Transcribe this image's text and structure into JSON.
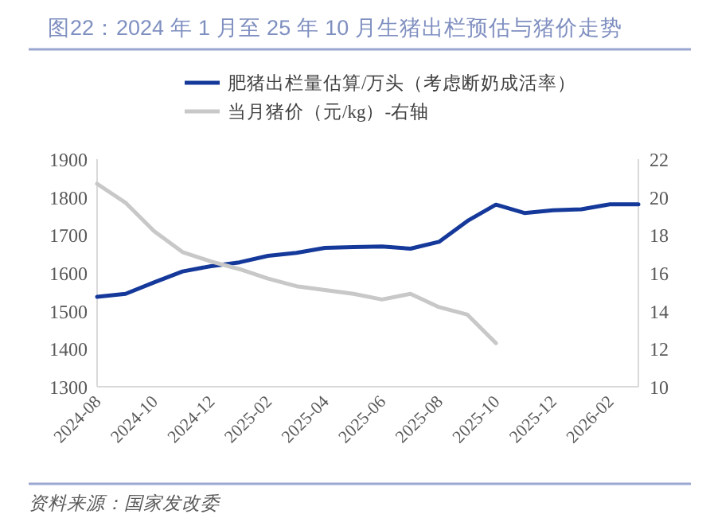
{
  "chart_data": {
    "type": "line",
    "title": "图22：2024 年 1 月至 25 年 10 月生猪出栏预估与猪价走势",
    "x": [
      "2024-08",
      "2024-09",
      "2024-10",
      "2024-11",
      "2024-12",
      "2025-01",
      "2025-02",
      "2025-03",
      "2025-04",
      "2025-05",
      "2025-06",
      "2025-07",
      "2025-08",
      "2025-09",
      "2025-10",
      "2025-11",
      "2025-12",
      "2026-01",
      "2026-02",
      "2026-03"
    ],
    "series": [
      {
        "name": "肥猪出栏量估算/万头（考虑断奶成活率）",
        "color": "#15399a",
        "values": [
          1537,
          1545,
          1575,
          1604,
          1618,
          1628,
          1645,
          1653,
          1666,
          1668,
          1670,
          1664,
          1682,
          1737,
          1780,
          1758,
          1765,
          1768,
          1781,
          1781
        ]
      },
      {
        "name": "当月猪价（元/kg）-右轴",
        "color": "#c8c8c8",
        "axis": "y2",
        "values": [
          20.7,
          19.7,
          18.2,
          17.1,
          16.6,
          16.2,
          15.7,
          15.3,
          15.1,
          14.9,
          14.6,
          14.9,
          14.2,
          13.8,
          12.3,
          null,
          null,
          null,
          null,
          null
        ]
      }
    ],
    "xlim": [
      "2024-08",
      "2026-03"
    ],
    "xticks": [
      "2024-08",
      "2024-10",
      "2024-12",
      "2025-02",
      "2025-04",
      "2025-06",
      "2025-08",
      "2025-10",
      "2025-12",
      "2026-02"
    ],
    "ylim": [
      1300,
      1900
    ],
    "yticks": [
      1300,
      1400,
      1500,
      1600,
      1700,
      1800,
      1900
    ],
    "y2lim": [
      10,
      22
    ],
    "y2ticks": [
      10,
      12,
      14,
      16,
      18,
      20,
      22
    ],
    "grid": false,
    "legend": "top",
    "annotations": [
      "资料来源：国家发改委"
    ]
  }
}
